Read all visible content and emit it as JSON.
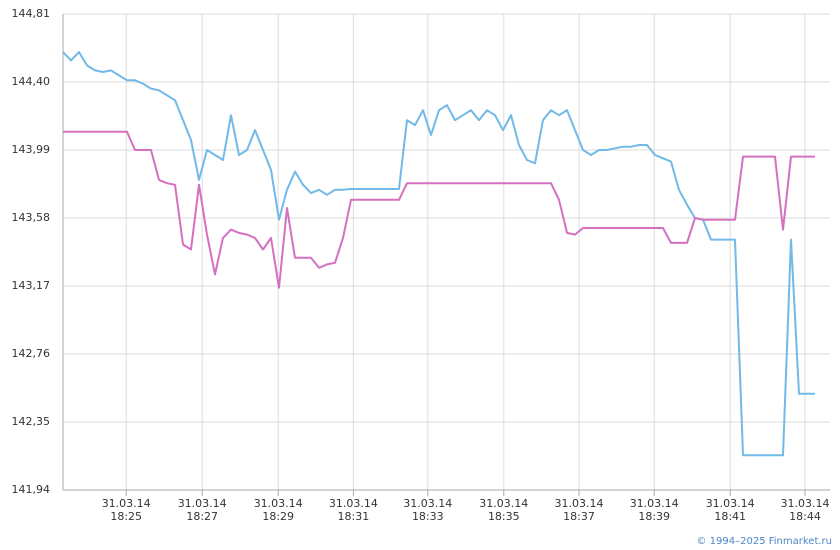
{
  "chart_data": {
    "type": "line",
    "ylim": [
      141.94,
      144.81
    ],
    "yticks": [
      {
        "value": 141.94,
        "label": "141,94"
      },
      {
        "value": 142.35,
        "label": "142,35"
      },
      {
        "value": 142.76,
        "label": "142,76"
      },
      {
        "value": 143.17,
        "label": "143,17"
      },
      {
        "value": 143.58,
        "label": "143,58"
      },
      {
        "value": 143.99,
        "label": "143,99"
      },
      {
        "value": 144.4,
        "label": "144,40"
      },
      {
        "value": 144.81,
        "label": "144,81"
      }
    ],
    "xlim": [
      0,
      94
    ],
    "xticks": [
      {
        "value": 7.9,
        "label": "31.03.14\n18:25"
      },
      {
        "value": 17.4,
        "label": "31.03.14\n18:27"
      },
      {
        "value": 26.9,
        "label": "31.03.14\n18:29"
      },
      {
        "value": 36.3,
        "label": "31.03.14\n18:31"
      },
      {
        "value": 45.6,
        "label": "31.03.14\n18:33"
      },
      {
        "value": 55.1,
        "label": "31.03.14\n18:35"
      },
      {
        "value": 64.5,
        "label": "31.03.14\n18:37"
      },
      {
        "value": 73.9,
        "label": "31.03.14\n18:39"
      },
      {
        "value": 83.4,
        "label": "31.03.14\n18:41"
      },
      {
        "value": 92.75,
        "label": "31.03.14\n18:44"
      }
    ],
    "grid": true,
    "series": [
      {
        "color": "#72b9e8",
        "values": [
          144.58,
          144.53,
          144.58,
          144.5,
          144.47,
          144.46,
          144.47,
          144.44,
          144.41,
          144.41,
          144.39,
          144.36,
          144.35,
          144.32,
          144.29,
          144.17,
          144.05,
          143.81,
          143.99,
          143.96,
          143.93,
          144.2,
          143.96,
          143.99,
          144.11,
          143.99,
          143.87,
          143.57,
          143.75,
          143.86,
          143.78,
          143.73,
          143.75,
          143.72,
          143.75,
          143.75,
          143.755,
          143.755,
          143.755,
          143.755,
          143.755,
          143.755,
          143.755,
          144.17,
          144.14,
          144.23,
          144.08,
          144.23,
          144.26,
          144.17,
          144.2,
          144.23,
          144.17,
          144.23,
          144.2,
          144.11,
          144.2,
          144.02,
          143.93,
          143.91,
          144.17,
          144.23,
          144.2,
          144.23,
          144.11,
          143.99,
          143.96,
          143.99,
          143.99,
          144.0,
          144.01,
          144.01,
          144.02,
          144.02,
          143.96,
          143.94,
          143.92,
          143.75,
          143.66,
          143.58,
          143.57,
          143.45,
          143.45,
          143.45,
          143.45,
          142.15,
          142.15,
          142.15,
          142.15,
          142.15,
          142.15,
          143.45,
          142.52,
          142.52,
          142.52
        ]
      },
      {
        "color": "#d470bf",
        "values": [
          144.1,
          144.1,
          144.1,
          144.1,
          144.1,
          144.1,
          144.1,
          144.1,
          144.1,
          143.99,
          143.99,
          143.99,
          143.81,
          143.79,
          143.78,
          143.42,
          143.39,
          143.78,
          143.48,
          143.24,
          143.46,
          143.51,
          143.49,
          143.48,
          143.46,
          143.39,
          143.46,
          143.16,
          143.64,
          143.34,
          143.34,
          143.34,
          143.28,
          143.3,
          143.31,
          143.46,
          143.69,
          143.69,
          143.69,
          143.69,
          143.69,
          143.69,
          143.69,
          143.79,
          143.79,
          143.79,
          143.79,
          143.79,
          143.79,
          143.79,
          143.79,
          143.79,
          143.79,
          143.79,
          143.79,
          143.79,
          143.79,
          143.79,
          143.79,
          143.79,
          143.79,
          143.79,
          143.69,
          143.49,
          143.48,
          143.52,
          143.52,
          143.52,
          143.52,
          143.52,
          143.52,
          143.52,
          143.52,
          143.52,
          143.52,
          143.52,
          143.43,
          143.43,
          143.43,
          143.58,
          143.57,
          143.57,
          143.57,
          143.57,
          143.57,
          143.95,
          143.95,
          143.95,
          143.95,
          143.95,
          143.51,
          143.95,
          143.95,
          143.95,
          143.95
        ]
      }
    ],
    "credit": "© 1994–2025 Finmarket.ru"
  }
}
